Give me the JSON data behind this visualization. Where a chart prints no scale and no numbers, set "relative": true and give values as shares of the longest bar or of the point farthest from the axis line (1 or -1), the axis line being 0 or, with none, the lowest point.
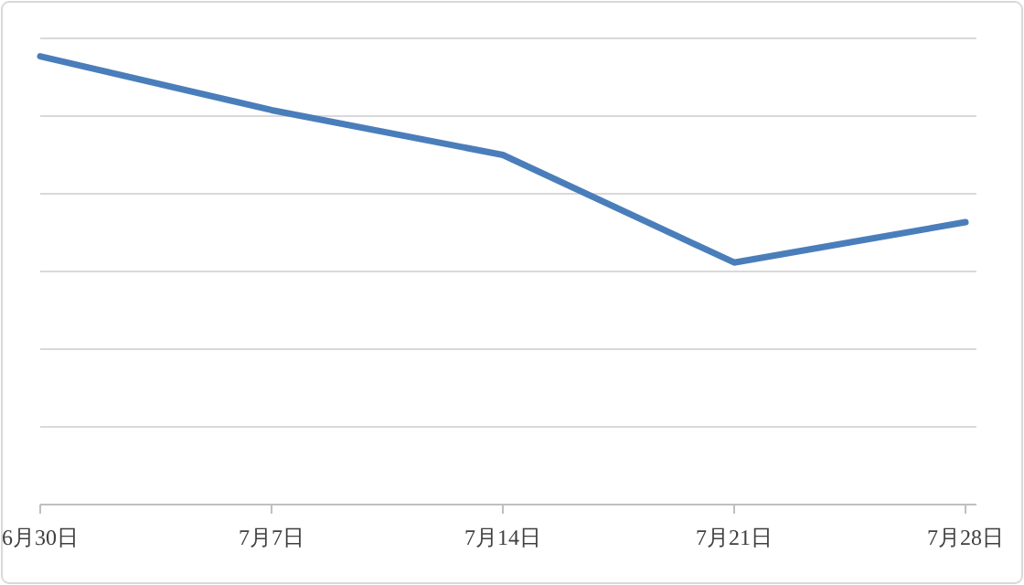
{
  "chart_data": {
    "type": "line",
    "relative": true,
    "categories": [
      "6月30日",
      "7月7日",
      "7月14日",
      "7月21日",
      "7月28日"
    ],
    "series": [
      {
        "color": "#4a7ebb",
        "values": [
          1,
          0.88,
          0.78,
          0.54,
          0.63
        ]
      }
    ],
    "grid": "y",
    "marker": "none",
    "line_style": "solid"
  }
}
